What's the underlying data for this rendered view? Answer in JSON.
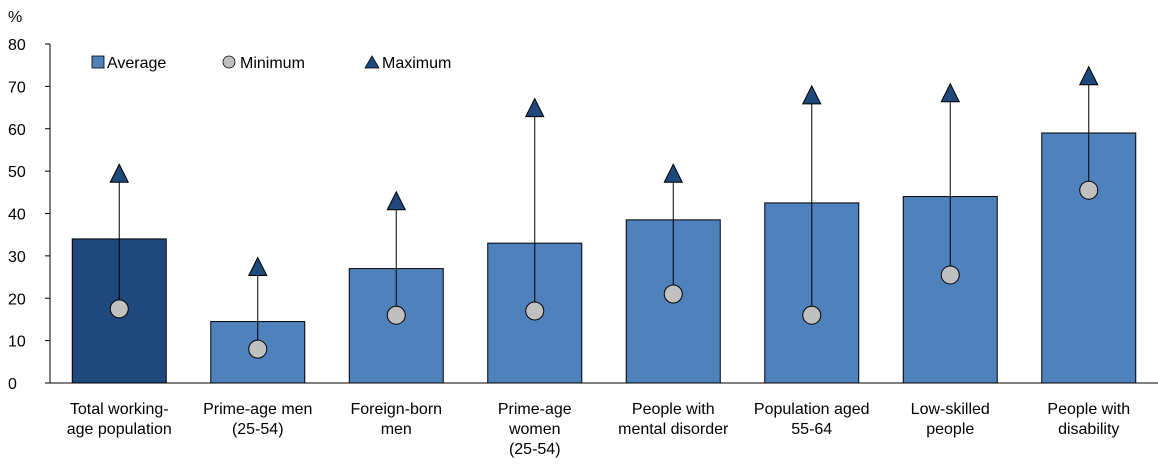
{
  "chart_data": {
    "type": "bar",
    "unit_label": "%",
    "ylim": [
      0,
      80
    ],
    "yticks": [
      0,
      10,
      20,
      30,
      40,
      50,
      60,
      70,
      80
    ],
    "grid": false,
    "legend_position": "top-left",
    "categories": [
      [
        "Total working-",
        "age population"
      ],
      [
        "Prime-age men",
        "(25-54)"
      ],
      [
        "Foreign-born",
        "men"
      ],
      [
        "Prime-age",
        "women",
        "(25-54)"
      ],
      [
        "People with",
        "mental disorder"
      ],
      [
        "Population aged",
        "55-64"
      ],
      [
        "Low-skilled",
        "people"
      ],
      [
        "People with",
        "disability"
      ]
    ],
    "series": [
      {
        "name": "Average",
        "values": [
          34,
          14.5,
          27,
          33,
          38.5,
          42.5,
          44,
          59
        ]
      },
      {
        "name": "Minimum",
        "values": [
          17.5,
          8,
          16,
          17,
          21,
          16,
          25.5,
          45.5
        ]
      },
      {
        "name": "Maximum",
        "values": [
          49.5,
          27.5,
          43,
          65,
          49.5,
          68,
          68.5,
          72.5
        ]
      }
    ],
    "colors": {
      "highlight_bar": "#1f497d",
      "bar": "#4f81bd",
      "bar_border": "#000000",
      "marker_circle": "#c0c0c0",
      "marker_triangle": "#1f497d"
    }
  }
}
